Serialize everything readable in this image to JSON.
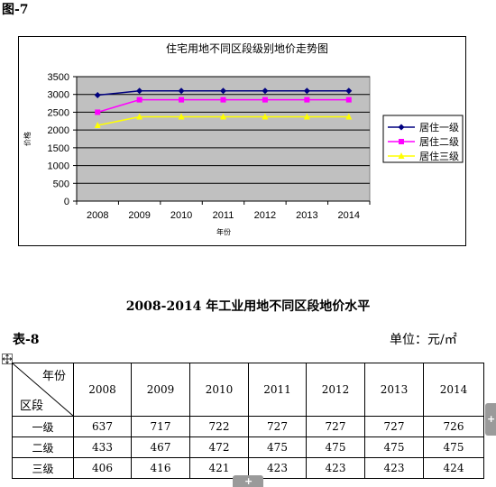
{
  "figure": {
    "label": "图-7"
  },
  "chart_data": {
    "type": "line",
    "title": "住宅用地不同区段级别地价走势图",
    "xlabel": "年份",
    "ylabel": "价格",
    "categories": [
      "2008",
      "2009",
      "2010",
      "2011",
      "2012",
      "2013",
      "2014"
    ],
    "ylim": [
      0,
      3500
    ],
    "yticks": [
      0,
      500,
      1000,
      1500,
      2000,
      2500,
      3000,
      3500
    ],
    "grid": true,
    "legend": "right",
    "plot_background": "#c0c0c0",
    "series": [
      {
        "name": "居住一级",
        "values": [
          2980,
          3100,
          3100,
          3100,
          3100,
          3100,
          3100
        ],
        "color": "#000080",
        "marker": "diamond"
      },
      {
        "name": "居住二级",
        "values": [
          2500,
          2850,
          2850,
          2850,
          2850,
          2850,
          2850
        ],
        "color": "#ff00ff",
        "marker": "square"
      },
      {
        "name": "居住三级",
        "values": [
          2130,
          2370,
          2370,
          2370,
          2370,
          2370,
          2370
        ],
        "color": "#ffff00",
        "marker": "triangle"
      }
    ]
  },
  "document": {
    "title": "2008-2014 年工业用地不同区段地价水平"
  },
  "table": {
    "label": "表-8",
    "unit": "单位：元/㎡",
    "header_year": "年份",
    "header_area": "区段",
    "years": [
      "2008",
      "2009",
      "2010",
      "2011",
      "2012",
      "2013",
      "2014"
    ],
    "rows": [
      {
        "name": "一级",
        "values": [
          "637",
          "717",
          "722",
          "727",
          "727",
          "727",
          "726"
        ]
      },
      {
        "name": "二级",
        "values": [
          "433",
          "467",
          "472",
          "475",
          "475",
          "475",
          "475"
        ]
      },
      {
        "name": "三级",
        "values": [
          "406",
          "416",
          "421",
          "423",
          "423",
          "423",
          "424"
        ]
      }
    ]
  },
  "icons": {
    "move_handle": "move-icon",
    "add_column": "plus-icon",
    "add_row": "plus-icon"
  }
}
